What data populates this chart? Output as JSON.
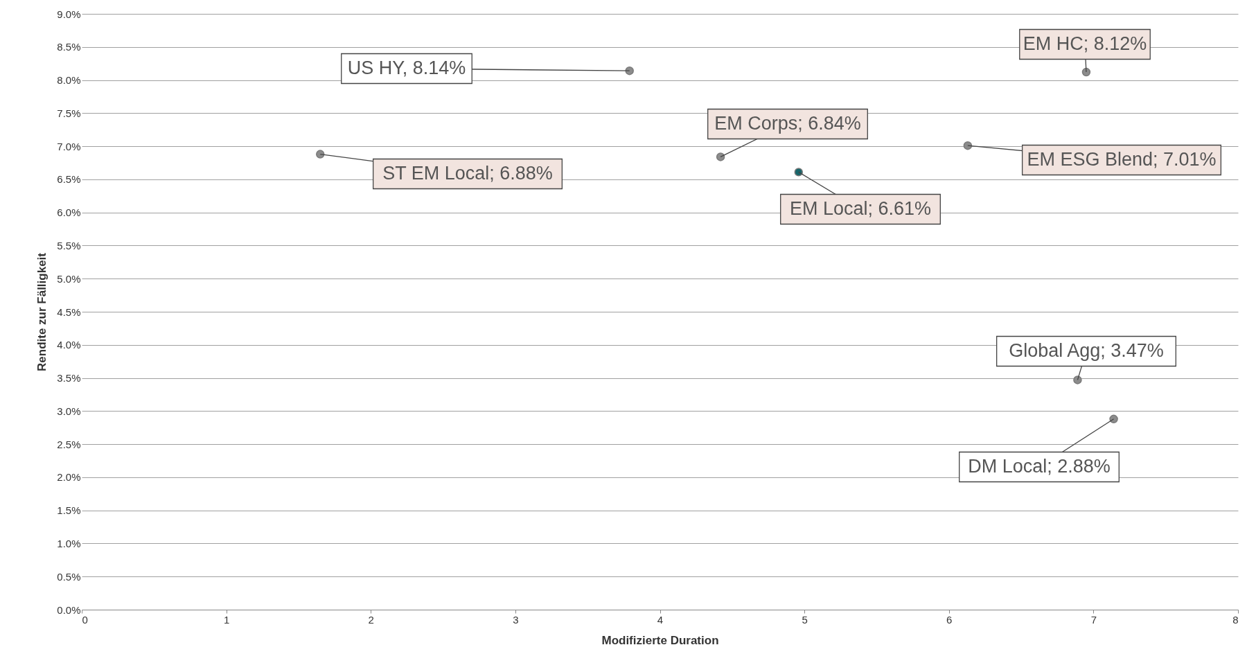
{
  "chart_data": {
    "type": "scatter",
    "xlabel": "Modifizierte Duration",
    "ylabel": "Rendite zur Fälligkeit",
    "x": [
      1.65,
      3.79,
      4.42,
      4.96,
      6.13,
      6.95,
      6.89,
      7.14
    ],
    "values": [
      6.88,
      8.14,
      6.84,
      6.61,
      7.01,
      8.12,
      3.47,
      2.88
    ],
    "colors": [
      "#8c8c8c",
      "#8c8c8c",
      "#8c8c8c",
      "#17666b",
      "#8c8c8c",
      "#8c8c8c",
      "#8c8c8c",
      "#8c8c8c"
    ],
    "marker": "circle",
    "xlim": [
      0,
      8
    ],
    "xticks": [
      0,
      1,
      2,
      3,
      4,
      5,
      6,
      7,
      8
    ],
    "ylim": [
      0,
      9
    ],
    "yticks": [
      {
        "value": 0,
        "label": "0.0%"
      },
      {
        "value": 0.5,
        "label": "0.5%"
      },
      {
        "value": 1,
        "label": "1.0%"
      },
      {
        "value": 1.5,
        "label": "1.5%"
      },
      {
        "value": 2,
        "label": "2.0%"
      },
      {
        "value": 2.5,
        "label": "2.5%"
      },
      {
        "value": 3,
        "label": "3.0%"
      },
      {
        "value": 3.5,
        "label": "3.5%"
      },
      {
        "value": 4,
        "label": "4.0%"
      },
      {
        "value": 4.5,
        "label": "4.5%"
      },
      {
        "value": 5,
        "label": "5.0%"
      },
      {
        "value": 5.5,
        "label": "5.5%"
      },
      {
        "value": 6,
        "label": "6.0%"
      },
      {
        "value": 6.5,
        "label": "6.5%"
      },
      {
        "value": 7,
        "label": "7.0%"
      },
      {
        "value": 7.5,
        "label": "7.5%"
      },
      {
        "value": 8,
        "label": "8.0%"
      },
      {
        "value": 8.5,
        "label": "8.5%"
      },
      {
        "value": 9,
        "label": "9.0%"
      }
    ],
    "grid": "y",
    "annotations": [
      {
        "text": "ST EM Local; 6.88%",
        "x": 1.65,
        "y": 6.88
      },
      {
        "text": "US HY, 8.14%",
        "x": 3.79,
        "y": 8.14
      },
      {
        "text": "EM Corps; 6.84%",
        "x": 4.42,
        "y": 6.84
      },
      {
        "text": "EM Local; 6.61%",
        "x": 4.96,
        "y": 6.61
      },
      {
        "text": "EM ESG Blend; 7.01%",
        "x": 6.13,
        "y": 7.01
      },
      {
        "text": "EM HC; 8.12%",
        "x": 6.95,
        "y": 8.12
      },
      {
        "text": "Global Agg; 3.47%",
        "x": 6.89,
        "y": 3.47
      },
      {
        "text": "DM Local; 2.88%",
        "x": 7.14,
        "y": 2.88
      }
    ]
  }
}
